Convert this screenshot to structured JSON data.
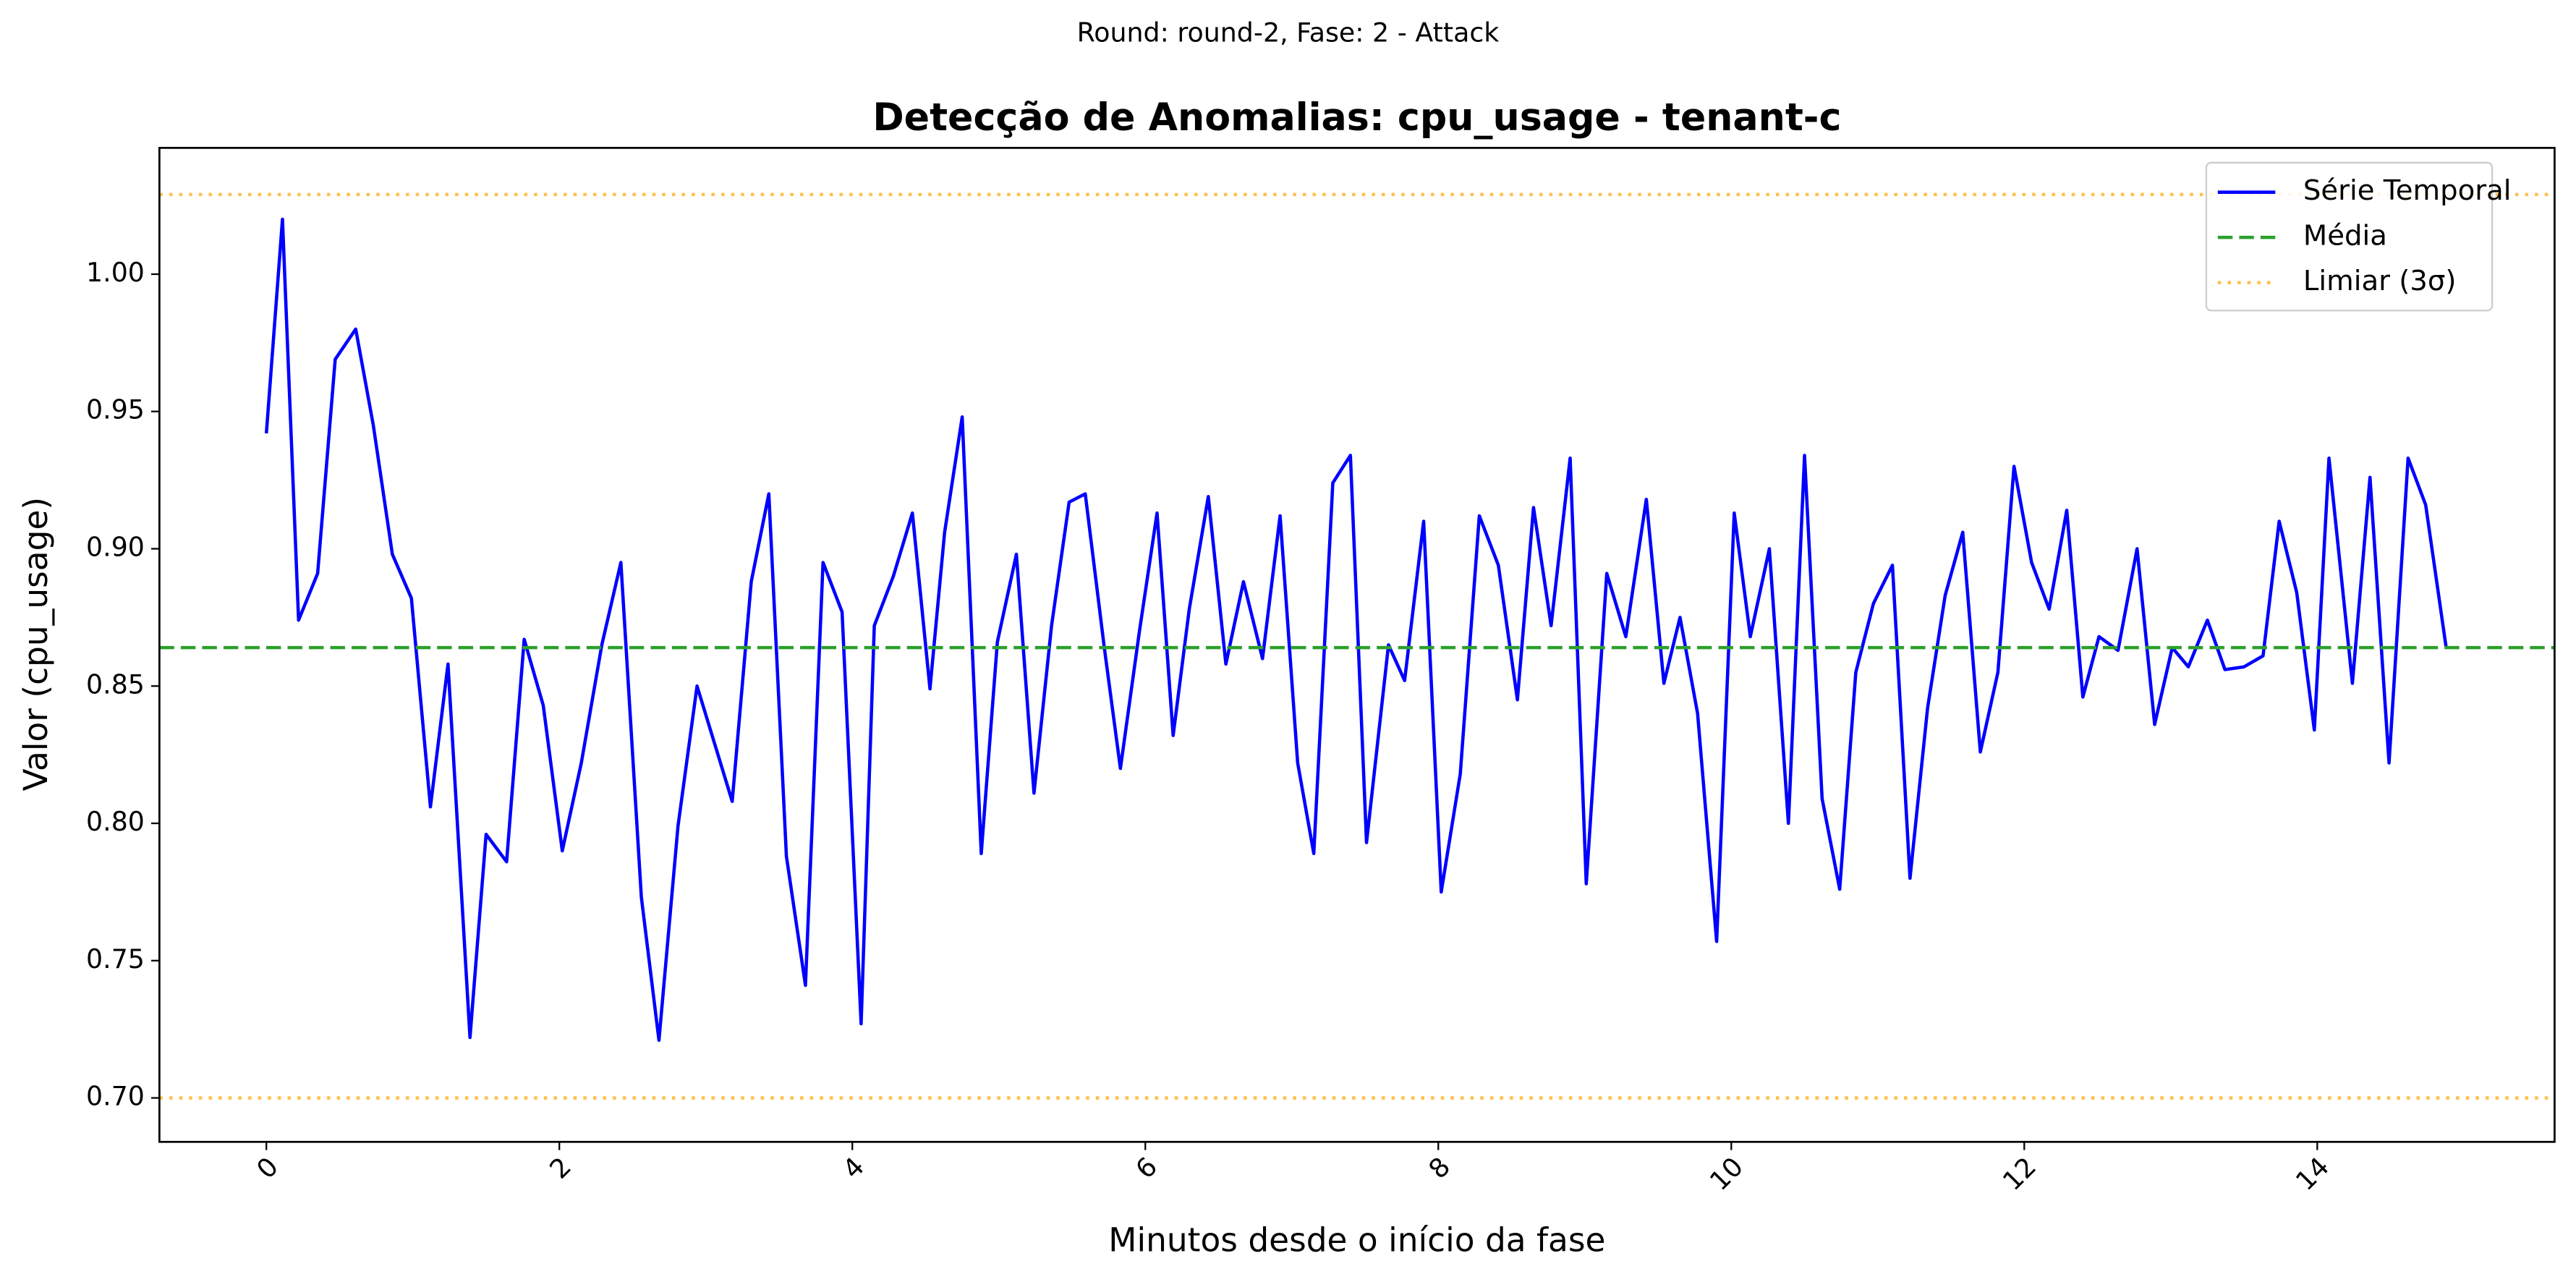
{
  "chart_data": {
    "type": "line",
    "suptitle": "Round: round-2, Fase: 2 - Attack",
    "title": "Detecção de Anomalias: cpu_usage - tenant-c",
    "xlabel": "Minutos desde o início da fase",
    "ylabel": "Valor (cpu_usage)",
    "xlim": [
      -0.73,
      15.62
    ],
    "ylim": [
      0.684,
      1.046
    ],
    "xticks": [
      0,
      2,
      4,
      6,
      8,
      10,
      12,
      14
    ],
    "yticks": [
      {
        "value": 0.7,
        "label": "0.70"
      },
      {
        "value": 0.75,
        "label": "0.75"
      },
      {
        "value": 0.8,
        "label": "0.80"
      },
      {
        "value": 0.85,
        "label": "0.85"
      },
      {
        "value": 0.9,
        "label": "0.90"
      },
      {
        "value": 0.95,
        "label": "0.95"
      },
      {
        "value": 1.0,
        "label": "1.00"
      }
    ],
    "legend": "upper right",
    "x": [
      0,
      0.11,
      0.22,
      0.35,
      0.47,
      0.61,
      0.73,
      0.86,
      0.99,
      1.12,
      1.24,
      1.39,
      1.5,
      1.64,
      1.76,
      1.89,
      2.02,
      2.15,
      2.29,
      2.42,
      2.56,
      2.68,
      2.81,
      2.94,
      3.06,
      3.18,
      3.31,
      3.43,
      3.55,
      3.68,
      3.8,
      3.93,
      4.06,
      4.15,
      4.28,
      4.41,
      4.53,
      4.63,
      4.75,
      4.88,
      4.99,
      5.12,
      5.24,
      5.36,
      5.48,
      5.59,
      5.72,
      5.83,
      5.96,
      6.08,
      6.19,
      6.3,
      6.43,
      6.55,
      6.67,
      6.8,
      6.92,
      7.04,
      7.15,
      7.28,
      7.4,
      7.51,
      7.66,
      7.77,
      7.9,
      8.02,
      8.15,
      8.28,
      8.41,
      8.54,
      8.65,
      8.77,
      8.9,
      9.01,
      9.15,
      9.28,
      9.42,
      9.54,
      9.65,
      9.77,
      9.9,
      10.02,
      10.13,
      10.26,
      10.39,
      10.5,
      10.62,
      10.74,
      10.85,
      10.97,
      11.1,
      11.22,
      11.34,
      11.46,
      11.58,
      11.7,
      11.82,
      11.93,
      12.05,
      12.17,
      12.29,
      12.4,
      12.51,
      12.64,
      12.77,
      12.89,
      13.01,
      13.12,
      13.25,
      13.37,
      13.5,
      13.63,
      13.74,
      13.86,
      13.98,
      14.08,
      14.24,
      14.36,
      14.49,
      14.62,
      14.74,
      14.88
    ],
    "series": [
      {
        "name": "Série Temporal",
        "color": "#0000ff",
        "values": [
          0.942,
          1.02,
          0.874,
          0.891,
          0.969,
          0.98,
          0.945,
          0.898,
          0.882,
          0.806,
          0.858,
          0.722,
          0.796,
          0.786,
          0.867,
          0.843,
          0.79,
          0.822,
          0.865,
          0.895,
          0.773,
          0.721,
          0.799,
          0.85,
          0.829,
          0.808,
          0.888,
          0.92,
          0.788,
          0.741,
          0.895,
          0.877,
          0.727,
          0.872,
          0.89,
          0.913,
          0.849,
          0.906,
          0.948,
          0.789,
          0.866,
          0.898,
          0.811,
          0.872,
          0.917,
          0.92,
          0.864,
          0.82,
          0.87,
          0.913,
          0.832,
          0.878,
          0.919,
          0.858,
          0.888,
          0.86,
          0.912,
          0.822,
          0.789,
          0.924,
          0.934,
          0.793,
          0.865,
          0.852,
          0.91,
          0.775,
          0.818,
          0.912,
          0.894,
          0.845,
          0.915,
          0.872,
          0.933,
          0.778,
          0.891,
          0.868,
          0.918,
          0.851,
          0.875,
          0.84,
          0.757,
          0.913,
          0.868,
          0.9,
          0.8,
          0.934,
          0.809,
          0.776,
          0.855,
          0.88,
          0.894,
          0.78,
          0.842,
          0.883,
          0.906,
          0.826,
          0.855,
          0.93,
          0.895,
          0.878,
          0.914,
          0.846,
          0.868,
          0.863,
          0.9,
          0.836,
          0.864,
          0.857,
          0.874,
          0.856,
          0.857,
          0.861,
          0.91,
          0.884,
          0.834,
          0.933,
          0.851,
          0.926,
          0.822,
          0.933,
          0.916,
          0.864
        ]
      }
    ],
    "reference_lines": [
      {
        "name": "Média",
        "value": 0.864,
        "color": "#2ca02c",
        "style": "dashed"
      },
      {
        "name": "Limiar (3σ)",
        "value": 1.029,
        "color": "#ffc04d",
        "style": "dotted"
      },
      {
        "value": 0.7,
        "color": "#ffc04d",
        "style": "dotted"
      }
    ]
  }
}
